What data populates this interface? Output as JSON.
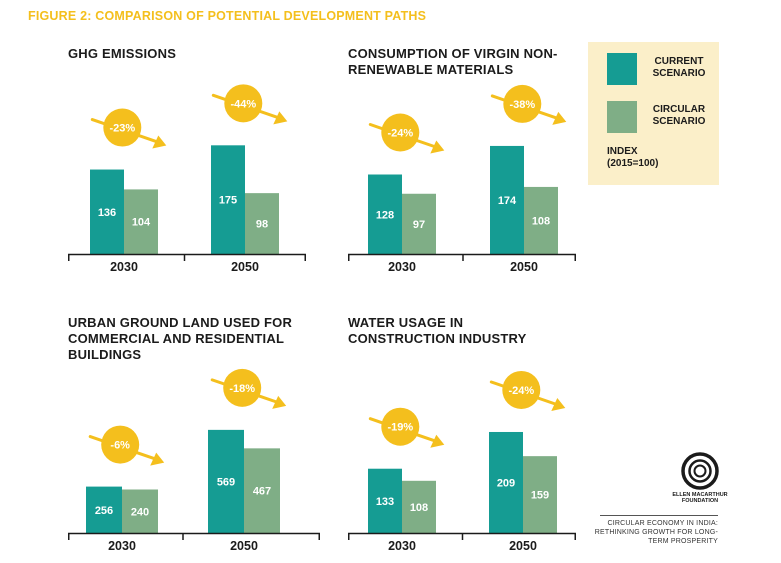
{
  "figure_title": "FIGURE 2: COMPARISON OF POTENTIAL DEVELOPMENT PATHS",
  "colors": {
    "current": "#159c93",
    "circular": "#7fae86",
    "arrow": "#f4bf1d",
    "legend_bg": "#fbefc9",
    "title": "#f4bf1d"
  },
  "legend": {
    "current_label": "CURRENT SCENARIO",
    "circular_label": "CIRCULAR SCENARIO",
    "index_label": "INDEX (2015=100)"
  },
  "chart_data": [
    {
      "type": "bar",
      "title": "GHG EMISSIONS",
      "categories": [
        "2030",
        "2050"
      ],
      "series": [
        {
          "name": "CURRENT SCENARIO",
          "values": [
            136,
            175
          ]
        },
        {
          "name": "CIRCULAR SCENARIO",
          "values": [
            104,
            98
          ]
        }
      ],
      "annotations": [
        "-23%",
        "-44%"
      ],
      "ylim": [
        0,
        190
      ]
    },
    {
      "type": "bar",
      "title": "CONSUMPTION OF VIRGIN NON-RENEWABLE MATERIALS",
      "categories": [
        "2030",
        "2050"
      ],
      "series": [
        {
          "name": "CURRENT SCENARIO",
          "values": [
            128,
            174
          ]
        },
        {
          "name": "CIRCULAR SCENARIO",
          "values": [
            97,
            108
          ]
        }
      ],
      "annotations": [
        "-24%",
        "-38%"
      ],
      "ylim": [
        0,
        190
      ]
    },
    {
      "type": "bar",
      "title": "URBAN GROUND LAND USED FOR COMMERCIAL AND RESIDENTIAL BUILDINGS",
      "categories": [
        "2030",
        "2050"
      ],
      "series": [
        {
          "name": "CURRENT SCENARIO",
          "values": [
            256,
            569
          ]
        },
        {
          "name": "CIRCULAR SCENARIO",
          "values": [
            240,
            467
          ]
        }
      ],
      "annotations": [
        "-6%",
        "-18%"
      ],
      "ylim": [
        0,
        640
      ]
    },
    {
      "type": "bar",
      "title": "WATER USAGE IN CONSTRUCTION INDUSTRY",
      "categories": [
        "2030",
        "2050"
      ],
      "series": [
        {
          "name": "CURRENT SCENARIO",
          "values": [
            133,
            209
          ]
        },
        {
          "name": "CIRCULAR SCENARIO",
          "values": [
            108,
            159
          ]
        }
      ],
      "annotations": [
        "-19%",
        "-24%"
      ],
      "ylim": [
        0,
        240
      ]
    }
  ],
  "logo_text": "ELLEN MACARTHUR FOUNDATION",
  "source_text": "CIRCULAR ECONOMY IN INDIA: RETHINKING GROWTH FOR LONG-TERM PROSPERITY"
}
